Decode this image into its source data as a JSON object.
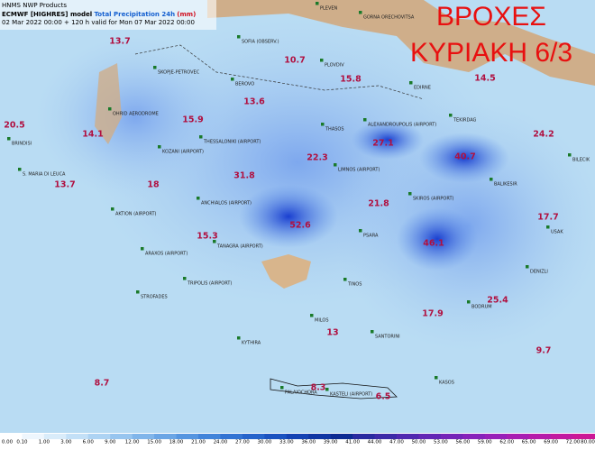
{
  "header": {
    "line1": "HNMS NWP Products",
    "model": "ECMWF [HIGHRES] model",
    "field": "Total Precipitation 24h",
    "unit": "(mm)",
    "line3": "02 Mar 2022 00:00 + 120 h valid for Mon 07 Mar 2022 00:00"
  },
  "title": {
    "line1": "ΒΡΟΧΕΣ",
    "line2": "ΚΥΡΙΑΚΗ 6/3"
  },
  "maxima": [
    13.7,
    10.7,
    15.8,
    14.5,
    13.6,
    15.9,
    20.5,
    14.1,
    27.1,
    22.3,
    40.7,
    24.2,
    31.8,
    13.7,
    18.0,
    21.8,
    17.7,
    52.6,
    15.3,
    46.1,
    25.4,
    17.9,
    13.0,
    9.7,
    8.7,
    8.3,
    6.5
  ],
  "stations": [
    "PLEVEN",
    "GORNA ORECHOVITSA",
    "SOFIA (OBSERV.)",
    "PLOVDIV",
    "SKOPJE-PETROVEC",
    "BEROVO",
    "EDIRNE",
    "OHRID AERODROME",
    "TEKIRDAG",
    "THASOS",
    "ALEXANDROUPOLIS (AIRPORT)",
    "THESSALONIKI (AIRPORT)",
    "KOZANI (AIRPORT)",
    "BRINDISI",
    "S. MARIA DI LEUCA",
    "LIMNOS (AIRPORT)",
    "BILECIK",
    "BALIKESIR",
    "ANCHIALOS (AIRPORT)",
    "AKTION (AIRPORT)",
    "SKIROS (AIRPORT)",
    "PSARA",
    "USAK",
    "ARAXOS (AIRPORT)",
    "TANAGRA (AIRPORT)",
    "TRIPOLIS (AIRPORT)",
    "DENIZLI",
    "STROFADES",
    "TINOS",
    "BODRUM",
    "MILOS",
    "KYTHIRA",
    "SANTORINI",
    "KASOS",
    "PALAIOCHORA",
    "KASTELI (AIRPORT)"
  ],
  "colorbar": [
    "0.00",
    "0.10",
    "1.00",
    "3.00",
    "6.00",
    "9.00",
    "12.00",
    "15.00",
    "18.00",
    "21.00",
    "24.00",
    "27.00",
    "30.00",
    "33.00",
    "36.00",
    "39.00",
    "41.00",
    "44.00",
    "47.00",
    "50.00",
    "53.00",
    "56.00",
    "59.00",
    "62.00",
    "65.00",
    "69.00",
    "72.00",
    "80.00"
  ]
}
